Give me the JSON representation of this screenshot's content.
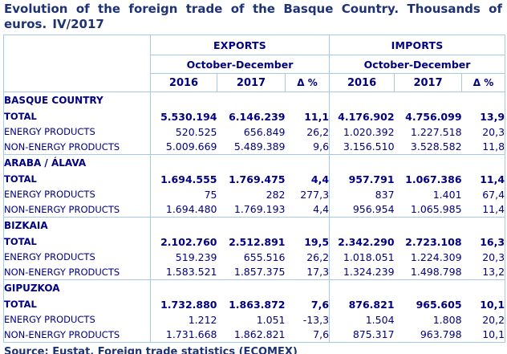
{
  "title": "Evolution of the foreign trade of the Basque Country. Thousands of euros. IV/2017",
  "source": "Source: Eustat. Foreign trade statistics (ECOMEX)",
  "colors": {
    "text_navy": "#000080",
    "title_navy": "#1F3273",
    "table_border": "#A6C9E8",
    "background": "#FFFFFF"
  },
  "table": {
    "column_groups": [
      {
        "label": "EXPORTS",
        "period": "October-December"
      },
      {
        "label": "IMPORTS",
        "period": "October-December"
      }
    ],
    "year_headers": [
      "2016",
      "2017",
      "Δ %"
    ],
    "sections": [
      {
        "name": "BASQUE COUNTRY",
        "rows": [
          {
            "label": "TOTAL",
            "bold": true,
            "exports": [
              "5.530.194",
              "6.146.239",
              "11,1"
            ],
            "imports": [
              "4.176.902",
              "4.756.099",
              "13,9"
            ]
          },
          {
            "label": "ENERGY PRODUCTS",
            "bold": false,
            "exports": [
              "520.525",
              "656.849",
              "26,2"
            ],
            "imports": [
              "1.020.392",
              "1.227.518",
              "20,3"
            ]
          },
          {
            "label": "NON-ENERGY PRODUCTS",
            "bold": false,
            "exports": [
              "5.009.669",
              "5.489.389",
              "9,6"
            ],
            "imports": [
              "3.156.510",
              "3.528.582",
              "11,8"
            ]
          }
        ]
      },
      {
        "name": "ARABA / ÁLAVA",
        "rows": [
          {
            "label": "TOTAL",
            "bold": true,
            "exports": [
              "1.694.555",
              "1.769.475",
              "4,4"
            ],
            "imports": [
              "957.791",
              "1.067.386",
              "11,4"
            ]
          },
          {
            "label": "ENERGY PRODUCTS",
            "bold": false,
            "exports": [
              "75",
              "282",
              "277,3"
            ],
            "imports": [
              "837",
              "1.401",
              "67,4"
            ]
          },
          {
            "label": "NON-ENERGY PRODUCTS",
            "bold": false,
            "exports": [
              "1.694.480",
              "1.769.193",
              "4,4"
            ],
            "imports": [
              "956.954",
              "1.065.985",
              "11,4"
            ]
          }
        ]
      },
      {
        "name": "BIZKAIA",
        "rows": [
          {
            "label": "TOTAL",
            "bold": true,
            "exports": [
              "2.102.760",
              "2.512.891",
              "19,5"
            ],
            "imports": [
              "2.342.290",
              "2.723.108",
              "16,3"
            ]
          },
          {
            "label": "ENERGY PRODUCTS",
            "bold": false,
            "exports": [
              "519.239",
              "655.516",
              "26,2"
            ],
            "imports": [
              "1.018.051",
              "1.224.309",
              "20,3"
            ]
          },
          {
            "label": "NON-ENERGY PRODUCTS",
            "bold": false,
            "exports": [
              "1.583.521",
              "1.857.375",
              "17,3"
            ],
            "imports": [
              "1.324.239",
              "1.498.798",
              "13,2"
            ]
          }
        ]
      },
      {
        "name": "GIPUZKOA",
        "rows": [
          {
            "label": "TOTAL",
            "bold": true,
            "exports": [
              "1.732.880",
              "1.863.872",
              "7,6"
            ],
            "imports": [
              "876.821",
              "965.605",
              "10,1"
            ]
          },
          {
            "label": "ENERGY PRODUCTS",
            "bold": false,
            "exports": [
              "1.212",
              "1.051",
              "-13,3"
            ],
            "imports": [
              "1.504",
              "1.808",
              "20,2"
            ]
          },
          {
            "label": "NON-ENERGY PRODUCTS",
            "bold": false,
            "exports": [
              "1.731.668",
              "1.862.821",
              "7,6"
            ],
            "imports": [
              "875.317",
              "963.798",
              "10,1"
            ]
          }
        ]
      }
    ]
  }
}
